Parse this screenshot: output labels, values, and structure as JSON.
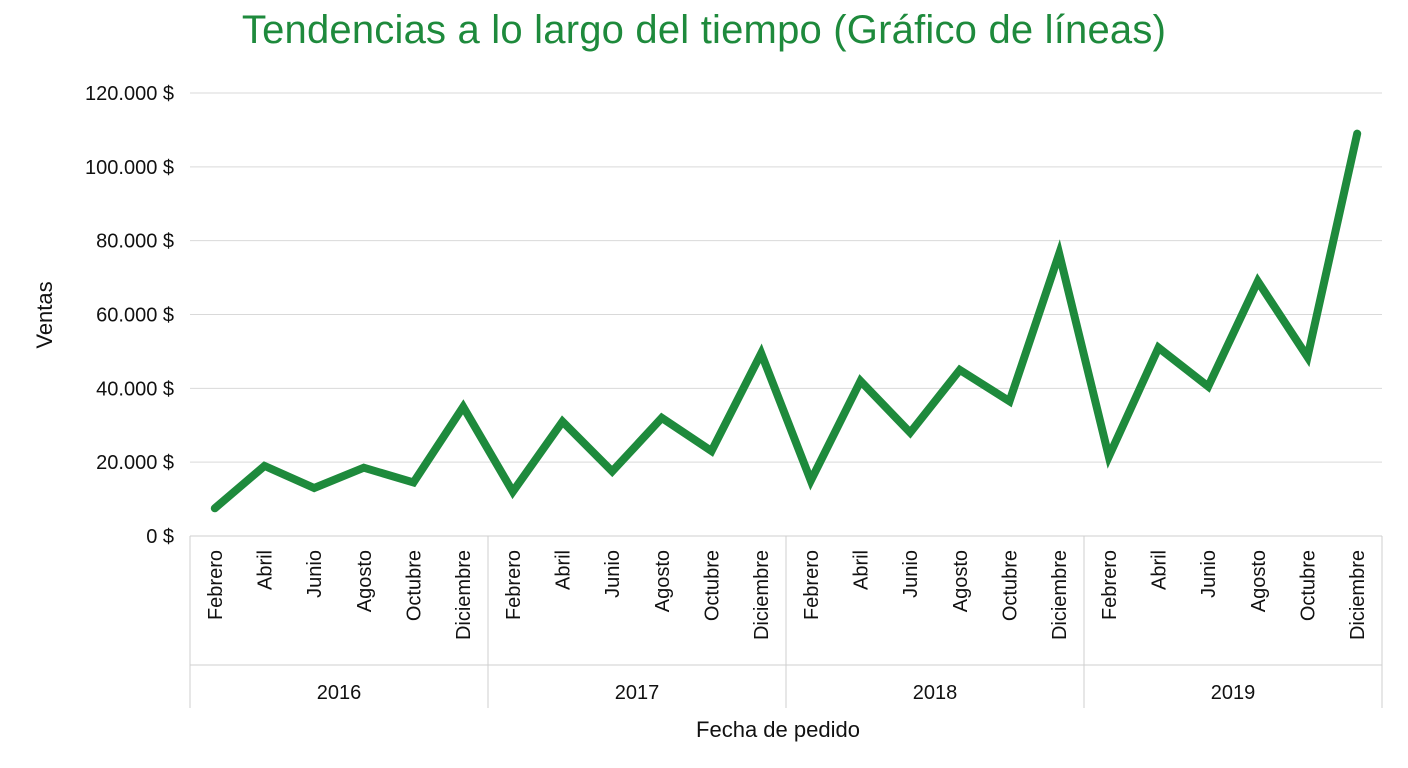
{
  "chart_data": {
    "type": "line",
    "title": "Tendencias a lo largo del tiempo (Gráfico de líneas)",
    "xlabel": "Fecha de pedido",
    "ylabel": "Ventas",
    "ylim": [
      0,
      120000
    ],
    "y_ticks": [
      0,
      20000,
      40000,
      60000,
      80000,
      100000,
      120000
    ],
    "y_tick_labels": [
      "0 $",
      "20.000 $",
      "40.000 $",
      "60.000 $",
      "80.000 $",
      "100.000 $",
      "120.000 $"
    ],
    "grid": true,
    "legend": "none",
    "line_color": "#1e8a3c",
    "years": [
      "2016",
      "2017",
      "2018",
      "2019"
    ],
    "months": [
      "Febrero",
      "Abril",
      "Junio",
      "Agosto",
      "Octubre",
      "Diciembre"
    ],
    "series": [
      {
        "name": "Ventas",
        "values": [
          7500,
          19000,
          13000,
          18500,
          14500,
          35000,
          12000,
          31000,
          17500,
          32000,
          23000,
          49500,
          15000,
          42000,
          28000,
          45000,
          36500,
          76500,
          21500,
          51000,
          40500,
          69000,
          48500,
          109000
        ]
      }
    ]
  }
}
